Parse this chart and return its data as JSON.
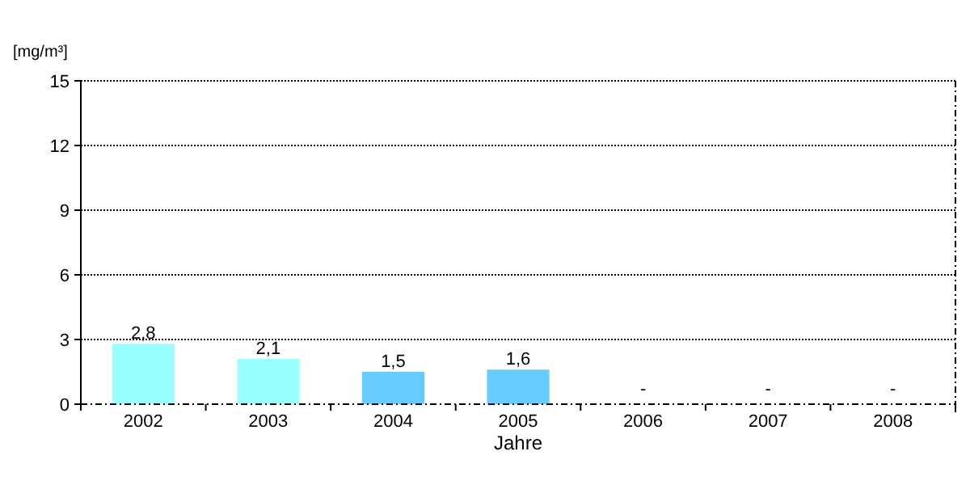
{
  "chart_data": {
    "type": "bar",
    "ylabel": "[mg/m³]",
    "xlabel": "Jahre",
    "categories": [
      "2002",
      "2003",
      "2004",
      "2005",
      "2006",
      "2007",
      "2008"
    ],
    "values": [
      2.8,
      2.1,
      1.5,
      1.6,
      null,
      null,
      null
    ],
    "colors": [
      "#99ffff",
      "#99ffff",
      "#66ccff",
      "#66ccff",
      null,
      null,
      null
    ],
    "value_labels": [
      "2,8",
      "2,1",
      "1,5",
      "1,6",
      "-",
      "-",
      "-"
    ],
    "ylim": [
      0,
      15
    ],
    "yticks": [
      0,
      3,
      6,
      9,
      12,
      15
    ],
    "grid": "y"
  }
}
